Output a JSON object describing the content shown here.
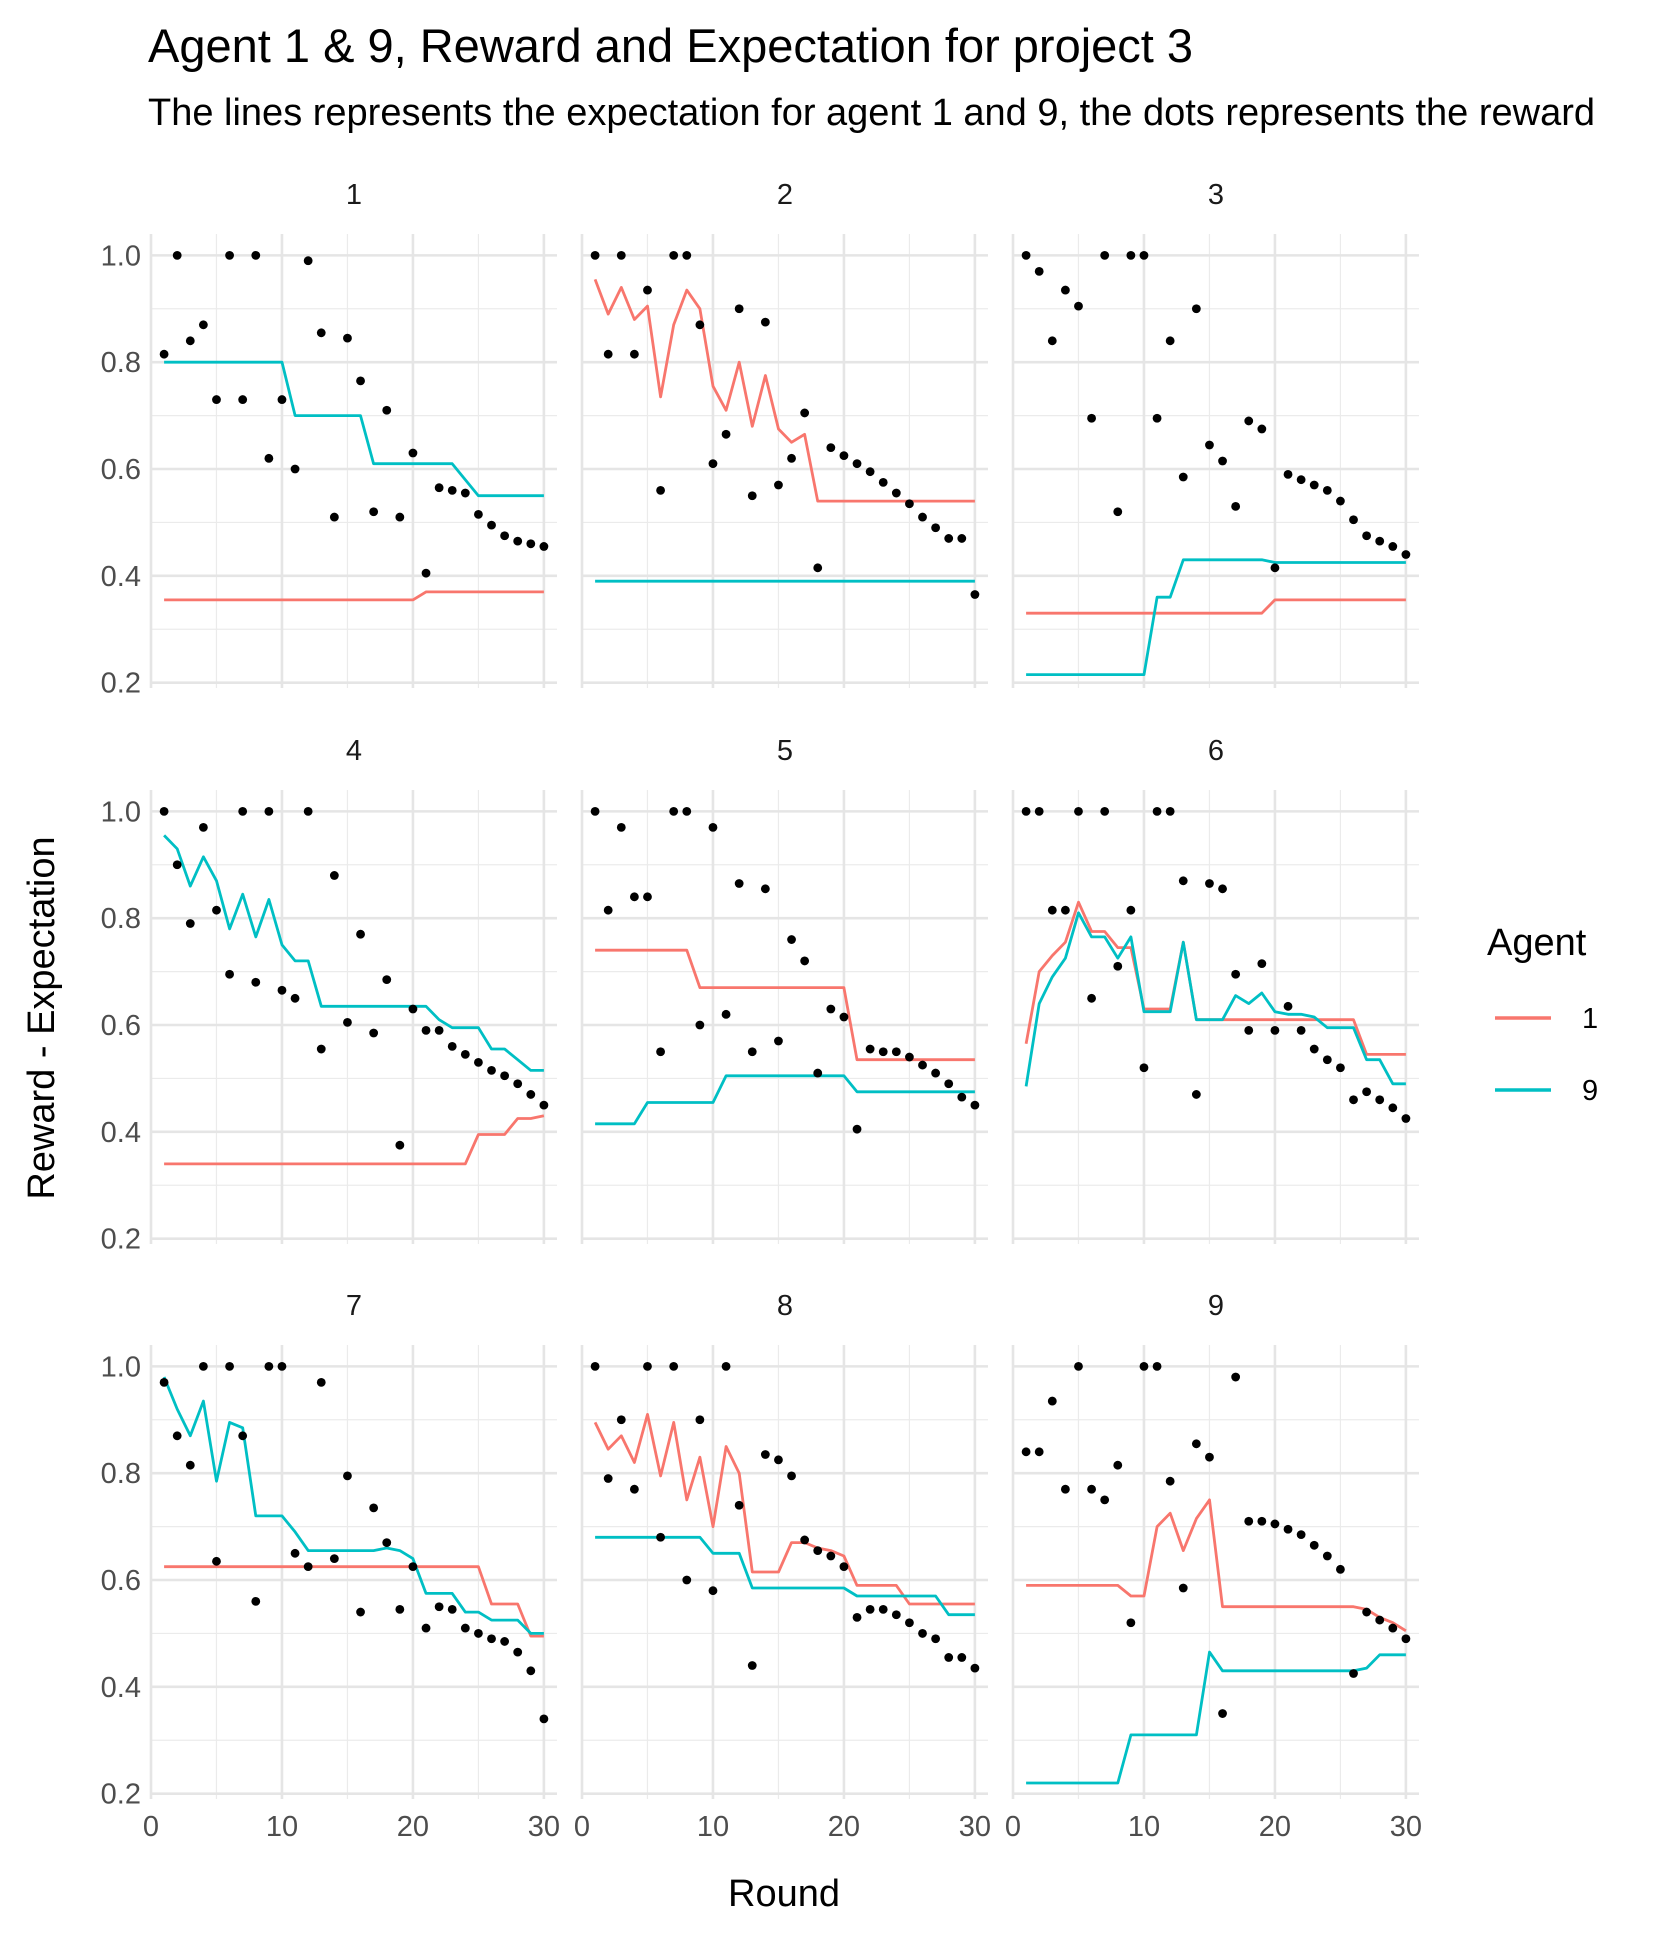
{
  "chart_data": {
    "type": "line",
    "title": "Agent 1 & 9, Reward and Expectation for project 3",
    "subtitle": "The lines represents the expectation for agent 1 and 9, the dots represents the reward",
    "xlabel": "Round",
    "ylabel": "Reward - Expectation",
    "xlim": [
      0,
      31
    ],
    "ylim": [
      0.19,
      1.04
    ],
    "x_ticks": [
      0,
      10,
      20,
      30
    ],
    "y_ticks": [
      0.2,
      0.4,
      0.6,
      0.8,
      1.0
    ],
    "y_tick_labels": [
      "0.2",
      "0.4",
      "0.6",
      "0.8",
      "1.0"
    ],
    "x_tick_labels": [
      "0",
      "10",
      "20",
      "30"
    ],
    "legend": {
      "title": "Agent",
      "position": "right",
      "entries": [
        {
          "label": "1",
          "color": "#F8766D"
        },
        {
          "label": "9",
          "color": "#00BFC4"
        }
      ]
    },
    "facets": [
      {
        "label": "1",
        "reward": [
          0.815,
          1.0,
          0.84,
          0.87,
          0.73,
          1.0,
          0.73,
          1.0,
          0.62,
          0.73,
          0.6,
          0.99,
          0.855,
          0.51,
          0.845,
          0.765,
          0.52,
          0.71,
          0.51,
          0.63,
          0.405,
          0.565,
          0.56,
          0.555,
          0.515,
          0.495,
          0.475,
          0.465,
          0.46,
          0.455
        ],
        "agent1": [
          0.355,
          0.355,
          0.355,
          0.355,
          0.355,
          0.355,
          0.355,
          0.355,
          0.355,
          0.355,
          0.355,
          0.355,
          0.355,
          0.355,
          0.355,
          0.355,
          0.355,
          0.355,
          0.355,
          0.355,
          0.37,
          0.37,
          0.37,
          0.37,
          0.37,
          0.37,
          0.37,
          0.37,
          0.37,
          0.37
        ],
        "agent9": [
          0.8,
          0.8,
          0.8,
          0.8,
          0.8,
          0.8,
          0.8,
          0.8,
          0.8,
          0.8,
          0.7,
          0.7,
          0.7,
          0.7,
          0.7,
          0.7,
          0.61,
          0.61,
          0.61,
          0.61,
          0.61,
          0.61,
          0.61,
          0.58,
          0.55,
          0.55,
          0.55,
          0.55,
          0.55,
          0.55
        ]
      },
      {
        "label": "2",
        "reward": [
          1.0,
          0.815,
          1.0,
          0.815,
          0.935,
          0.56,
          1.0,
          1.0,
          0.87,
          0.61,
          0.665,
          0.9,
          0.55,
          0.875,
          0.57,
          0.62,
          0.705,
          0.415,
          0.64,
          0.625,
          0.61,
          0.595,
          0.575,
          0.555,
          0.535,
          0.51,
          0.49,
          0.47,
          0.47,
          0.365
        ],
        "agent1": [
          0.955,
          0.89,
          0.94,
          0.88,
          0.905,
          0.735,
          0.87,
          0.935,
          0.9,
          0.755,
          0.71,
          0.8,
          0.68,
          0.775,
          0.675,
          0.65,
          0.665,
          0.54,
          0.54,
          0.54,
          0.54,
          0.54,
          0.54,
          0.54,
          0.54,
          0.54,
          0.54,
          0.54,
          0.54,
          0.54
        ],
        "agent9": [
          0.39,
          0.39,
          0.39,
          0.39,
          0.39,
          0.39,
          0.39,
          0.39,
          0.39,
          0.39,
          0.39,
          0.39,
          0.39,
          0.39,
          0.39,
          0.39,
          0.39,
          0.39,
          0.39,
          0.39,
          0.39,
          0.39,
          0.39,
          0.39,
          0.39,
          0.39,
          0.39,
          0.39,
          0.39,
          0.39
        ]
      },
      {
        "label": "3",
        "reward": [
          1.0,
          0.97,
          0.84,
          0.935,
          0.905,
          0.695,
          1.0,
          0.52,
          1.0,
          1.0,
          0.695,
          0.84,
          0.585,
          0.9,
          0.645,
          0.615,
          0.53,
          0.69,
          0.675,
          0.415,
          0.59,
          0.58,
          0.57,
          0.56,
          0.54,
          0.505,
          0.475,
          0.465,
          0.455,
          0.44
        ],
        "agent1": [
          0.33,
          0.33,
          0.33,
          0.33,
          0.33,
          0.33,
          0.33,
          0.33,
          0.33,
          0.33,
          0.33,
          0.33,
          0.33,
          0.33,
          0.33,
          0.33,
          0.33,
          0.33,
          0.33,
          0.355,
          0.355,
          0.355,
          0.355,
          0.355,
          0.355,
          0.355,
          0.355,
          0.355,
          0.355,
          0.355
        ],
        "agent9": [
          0.215,
          0.215,
          0.215,
          0.215,
          0.215,
          0.215,
          0.215,
          0.215,
          0.215,
          0.215,
          0.36,
          0.36,
          0.43,
          0.43,
          0.43,
          0.43,
          0.43,
          0.43,
          0.43,
          0.425,
          0.425,
          0.425,
          0.425,
          0.425,
          0.425,
          0.425,
          0.425,
          0.425,
          0.425,
          0.425
        ]
      },
      {
        "label": "4",
        "reward": [
          1.0,
          0.9,
          0.79,
          0.97,
          0.815,
          0.695,
          1.0,
          0.68,
          1.0,
          0.665,
          0.65,
          1.0,
          0.555,
          0.88,
          0.605,
          0.77,
          0.585,
          0.685,
          0.375,
          0.63,
          0.59,
          0.59,
          0.56,
          0.545,
          0.53,
          0.515,
          0.505,
          0.49,
          0.47,
          0.45
        ],
        "agent1": [
          0.34,
          0.34,
          0.34,
          0.34,
          0.34,
          0.34,
          0.34,
          0.34,
          0.34,
          0.34,
          0.34,
          0.34,
          0.34,
          0.34,
          0.34,
          0.34,
          0.34,
          0.34,
          0.34,
          0.34,
          0.34,
          0.34,
          0.34,
          0.34,
          0.395,
          0.395,
          0.395,
          0.425,
          0.425,
          0.43
        ],
        "agent9": [
          0.955,
          0.93,
          0.86,
          0.915,
          0.87,
          0.78,
          0.845,
          0.765,
          0.835,
          0.75,
          0.72,
          0.72,
          0.635,
          0.635,
          0.635,
          0.635,
          0.635,
          0.635,
          0.635,
          0.635,
          0.635,
          0.61,
          0.595,
          0.595,
          0.595,
          0.555,
          0.555,
          0.535,
          0.515,
          0.515
        ]
      },
      {
        "label": "5",
        "reward": [
          1.0,
          0.815,
          0.97,
          0.84,
          0.84,
          0.55,
          1.0,
          1.0,
          0.6,
          0.97,
          0.62,
          0.865,
          0.55,
          0.855,
          0.57,
          0.76,
          0.72,
          0.51,
          0.63,
          0.615,
          0.405,
          0.555,
          0.55,
          0.55,
          0.54,
          0.525,
          0.51,
          0.49,
          0.465,
          0.45
        ],
        "agent1": [
          0.74,
          0.74,
          0.74,
          0.74,
          0.74,
          0.74,
          0.74,
          0.74,
          0.67,
          0.67,
          0.67,
          0.67,
          0.67,
          0.67,
          0.67,
          0.67,
          0.67,
          0.67,
          0.67,
          0.67,
          0.535,
          0.535,
          0.535,
          0.535,
          0.535,
          0.535,
          0.535,
          0.535,
          0.535,
          0.535
        ],
        "agent9": [
          0.415,
          0.415,
          0.415,
          0.415,
          0.455,
          0.455,
          0.455,
          0.455,
          0.455,
          0.455,
          0.505,
          0.505,
          0.505,
          0.505,
          0.505,
          0.505,
          0.505,
          0.505,
          0.505,
          0.505,
          0.475,
          0.475,
          0.475,
          0.475,
          0.475,
          0.475,
          0.475,
          0.475,
          0.475,
          0.475
        ]
      },
      {
        "label": "6",
        "reward": [
          1.0,
          1.0,
          0.815,
          0.815,
          1.0,
          0.65,
          1.0,
          0.71,
          0.815,
          0.52,
          1.0,
          1.0,
          0.87,
          0.47,
          0.865,
          0.855,
          0.695,
          0.59,
          0.715,
          0.59,
          0.635,
          0.59,
          0.555,
          0.535,
          0.52,
          0.46,
          0.475,
          0.46,
          0.445,
          0.425
        ],
        "agent1": [
          0.565,
          0.7,
          0.73,
          0.755,
          0.83,
          0.775,
          0.775,
          0.745,
          0.745,
          0.63,
          0.63,
          0.63,
          0.755,
          0.61,
          0.61,
          0.61,
          0.61,
          0.61,
          0.61,
          0.61,
          0.61,
          0.61,
          0.61,
          0.61,
          0.61,
          0.61,
          0.545,
          0.545,
          0.545,
          0.545
        ],
        "agent9": [
          0.485,
          0.64,
          0.69,
          0.725,
          0.81,
          0.765,
          0.765,
          0.725,
          0.765,
          0.625,
          0.625,
          0.625,
          0.755,
          0.61,
          0.61,
          0.61,
          0.655,
          0.64,
          0.66,
          0.625,
          0.62,
          0.62,
          0.615,
          0.595,
          0.595,
          0.595,
          0.535,
          0.535,
          0.49,
          0.49
        ]
      },
      {
        "label": "7",
        "reward": [
          0.97,
          0.87,
          0.815,
          1.0,
          0.635,
          1.0,
          0.87,
          0.56,
          1.0,
          1.0,
          0.65,
          0.625,
          0.97,
          0.64,
          0.795,
          0.54,
          0.735,
          0.67,
          0.545,
          0.625,
          0.51,
          0.55,
          0.545,
          0.51,
          0.5,
          0.49,
          0.485,
          0.465,
          0.43,
          0.34
        ],
        "agent1": [
          0.625,
          0.625,
          0.625,
          0.625,
          0.625,
          0.625,
          0.625,
          0.625,
          0.625,
          0.625,
          0.625,
          0.625,
          0.625,
          0.625,
          0.625,
          0.625,
          0.625,
          0.625,
          0.625,
          0.625,
          0.625,
          0.625,
          0.625,
          0.625,
          0.625,
          0.555,
          0.555,
          0.555,
          0.495,
          0.495
        ],
        "agent9": [
          0.98,
          0.92,
          0.87,
          0.935,
          0.785,
          0.895,
          0.885,
          0.72,
          0.72,
          0.72,
          0.69,
          0.655,
          0.655,
          0.655,
          0.655,
          0.655,
          0.655,
          0.66,
          0.655,
          0.64,
          0.575,
          0.575,
          0.575,
          0.54,
          0.54,
          0.525,
          0.525,
          0.525,
          0.5,
          0.5
        ]
      },
      {
        "label": "8",
        "reward": [
          1.0,
          0.79,
          0.9,
          0.77,
          1.0,
          0.68,
          1.0,
          0.6,
          0.9,
          0.58,
          1.0,
          0.74,
          0.44,
          0.835,
          0.825,
          0.795,
          0.675,
          0.655,
          0.645,
          0.625,
          0.53,
          0.545,
          0.545,
          0.535,
          0.52,
          0.5,
          0.49,
          0.455,
          0.455,
          0.435
        ],
        "agent1": [
          0.895,
          0.845,
          0.87,
          0.82,
          0.91,
          0.795,
          0.895,
          0.75,
          0.83,
          0.7,
          0.85,
          0.8,
          0.615,
          0.615,
          0.615,
          0.67,
          0.67,
          0.66,
          0.655,
          0.645,
          0.59,
          0.59,
          0.59,
          0.59,
          0.555,
          0.555,
          0.555,
          0.555,
          0.555,
          0.555
        ],
        "agent9": [
          0.68,
          0.68,
          0.68,
          0.68,
          0.68,
          0.68,
          0.68,
          0.68,
          0.68,
          0.65,
          0.65,
          0.65,
          0.585,
          0.585,
          0.585,
          0.585,
          0.585,
          0.585,
          0.585,
          0.585,
          0.57,
          0.57,
          0.57,
          0.57,
          0.57,
          0.57,
          0.57,
          0.535,
          0.535,
          0.535
        ]
      },
      {
        "label": "9",
        "reward": [
          0.84,
          0.84,
          0.935,
          0.77,
          1.0,
          0.77,
          0.75,
          0.815,
          0.52,
          1.0,
          1.0,
          0.785,
          0.585,
          0.855,
          0.83,
          0.35,
          0.98,
          0.71,
          0.71,
          0.705,
          0.695,
          0.685,
          0.665,
          0.645,
          0.62,
          0.425,
          0.54,
          0.525,
          0.51,
          0.49
        ],
        "agent1": [
          0.59,
          0.59,
          0.59,
          0.59,
          0.59,
          0.59,
          0.59,
          0.59,
          0.57,
          0.57,
          0.7,
          0.725,
          0.655,
          0.715,
          0.75,
          0.55,
          0.55,
          0.55,
          0.55,
          0.55,
          0.55,
          0.55,
          0.55,
          0.55,
          0.55,
          0.55,
          0.545,
          0.53,
          0.52,
          0.505
        ],
        "agent9": [
          0.22,
          0.22,
          0.22,
          0.22,
          0.22,
          0.22,
          0.22,
          0.22,
          0.31,
          0.31,
          0.31,
          0.31,
          0.31,
          0.31,
          0.465,
          0.43,
          0.43,
          0.43,
          0.43,
          0.43,
          0.43,
          0.43,
          0.43,
          0.43,
          0.43,
          0.43,
          0.435,
          0.46,
          0.46,
          0.46
        ]
      }
    ]
  }
}
